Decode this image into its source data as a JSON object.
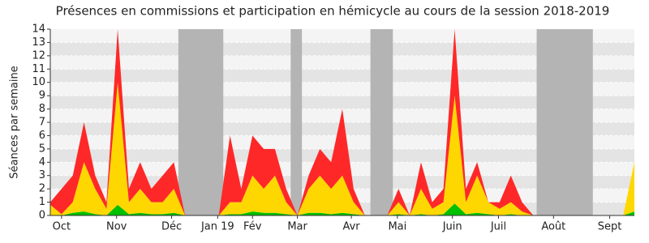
{
  "chart_data": {
    "type": "stacked-area",
    "title": "Présences en commissions et participation en hémicycle au cours de la session 2018-2019",
    "ylabel": "Séances par semaine",
    "x": [
      0,
      1,
      2,
      3,
      4,
      5,
      6,
      7,
      8,
      9,
      10,
      11,
      12,
      13,
      14,
      15,
      16,
      17,
      18,
      19,
      20,
      21,
      22,
      23,
      24,
      25,
      26,
      27,
      28,
      29,
      30,
      31,
      32,
      33,
      34,
      35,
      36,
      37,
      38,
      39,
      40,
      41,
      42,
      43,
      44,
      45,
      46,
      47,
      48,
      49,
      50,
      51,
      52
    ],
    "series": [
      {
        "color": "#00c000",
        "values": [
          0,
          0,
          0.2,
          0.3,
          0.1,
          0,
          0.8,
          0.1,
          0.2,
          0.1,
          0.1,
          0.2,
          0,
          0,
          0,
          0,
          0.1,
          0.1,
          0.3,
          0.2,
          0.2,
          0.1,
          0,
          0.2,
          0.2,
          0.1,
          0.2,
          0.1,
          0,
          0,
          0,
          0.1,
          0,
          0.1,
          0,
          0.1,
          0.9,
          0.1,
          0.2,
          0.1,
          0,
          0.1,
          0,
          0,
          0,
          0,
          0,
          0,
          0,
          0,
          0,
          0,
          0.3
        ]
      },
      {
        "color": "#ffd700",
        "values": [
          0.8,
          0.1,
          0.8,
          3.7,
          1.9,
          0.5,
          9.2,
          0.9,
          1.8,
          0.9,
          0.9,
          1.8,
          0,
          0,
          0,
          0,
          0.9,
          0.9,
          2.7,
          1.8,
          2.8,
          0.9,
          0,
          1.8,
          2.8,
          1.9,
          2.8,
          0.9,
          0,
          0,
          0,
          0.9,
          0,
          1.9,
          0.5,
          0.9,
          8.1,
          0.9,
          2.8,
          0.9,
          0.5,
          0.9,
          0.3,
          0,
          0,
          0,
          0,
          0,
          0,
          0,
          0,
          0,
          3.7
        ]
      },
      {
        "color": "#ff2828",
        "values": [
          0.2,
          1.9,
          2,
          3,
          1,
          0.5,
          4,
          1,
          2,
          1,
          2,
          2,
          0,
          0,
          0,
          0,
          5,
          1,
          3,
          3,
          2,
          1,
          0,
          1,
          2,
          2,
          5,
          1,
          0,
          0,
          0,
          1,
          0,
          2,
          0.5,
          1,
          5,
          1,
          1,
          0,
          0.5,
          2,
          0.7,
          0,
          0,
          0,
          0,
          0,
          0,
          0,
          0,
          0,
          0
        ]
      }
    ],
    "xlim": [
      0,
      52
    ],
    "xticks": [
      {
        "value": 1,
        "label": "Oct"
      },
      {
        "value": 5.9,
        "label": "Nov"
      },
      {
        "value": 10.8,
        "label": "Déc"
      },
      {
        "value": 14.9,
        "label": "Jan 19"
      },
      {
        "value": 18,
        "label": "Fév"
      },
      {
        "value": 22,
        "label": "Mar"
      },
      {
        "value": 26.8,
        "label": "Avr"
      },
      {
        "value": 30.9,
        "label": "Mai"
      },
      {
        "value": 35.8,
        "label": "Juin"
      },
      {
        "value": 39.9,
        "label": "Juil"
      },
      {
        "value": 44.8,
        "label": "Août"
      },
      {
        "value": 49.8,
        "label": "Sept"
      }
    ],
    "ylim": [
      0,
      14
    ],
    "yticks": [
      0,
      1,
      2,
      3,
      4,
      5,
      6,
      7,
      8,
      9,
      10,
      11,
      12,
      13,
      14
    ],
    "shaded_ranges": [
      [
        11.4,
        15.4
      ],
      [
        21.4,
        22.4
      ],
      [
        28.5,
        30.5
      ],
      [
        43.3,
        48.3
      ]
    ],
    "shade_color": "#b4b4b4",
    "grid": true
  }
}
